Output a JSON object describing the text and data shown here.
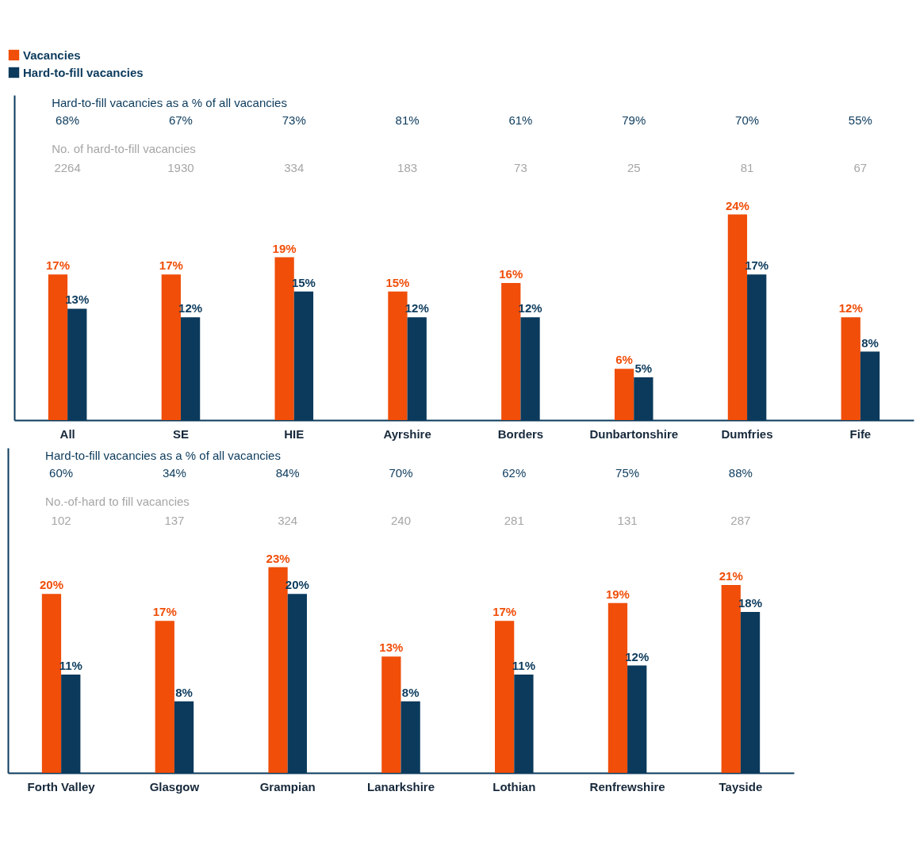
{
  "chart_data": [
    {
      "type": "bar",
      "categories": [
        "All",
        "SE",
        "HIE",
        "Ayrshire",
        "Borders",
        "Dunbartonshire",
        "Dumfries",
        "Fife"
      ],
      "legend": "top left",
      "series": [
        {
          "name": "Vacancies",
          "color": "#f04e09",
          "values": [
            17,
            17,
            19,
            15,
            16,
            6,
            24,
            12
          ],
          "value_labels": [
            "17%",
            "17%",
            "19%",
            "15%",
            "16%",
            "6%",
            "24%",
            "12%"
          ]
        },
        {
          "name": "Hard-to-fill vacancies",
          "color": "#0b3a5c",
          "values": [
            13,
            12,
            15,
            12,
            12,
            5,
            17,
            8
          ],
          "value_labels": [
            "13%",
            "12%",
            "15%",
            "12%",
            "12%",
            "5%",
            "17%",
            "8%"
          ]
        }
      ],
      "annotations": [
        "Hard-to-fill vacancies as a % of all vacancies",
        "68%",
        "67%",
        "73%",
        "81%",
        "61%",
        "79%",
        "70%",
        "55%",
        "No. of hard-to-fill vacancies",
        "2264",
        "1930",
        "334",
        "183",
        "73",
        "25",
        "81",
        "67"
      ]
    },
    {
      "type": "bar",
      "categories": [
        "Forth Valley",
        "Glasgow",
        "Grampian",
        "Lanarkshire",
        "Lothian",
        "Renfrewshire",
        "Tayside"
      ],
      "series": [
        {
          "color": "#f04e09",
          "values": [
            20,
            17,
            23,
            13,
            17,
            19,
            21
          ],
          "value_labels": [
            "20%",
            "17%",
            "23%",
            "13%",
            "17%",
            "19%",
            "21%"
          ]
        },
        {
          "color": "#0b3a5c",
          "values": [
            11,
            8,
            20,
            8,
            11,
            12,
            18
          ],
          "value_labels": [
            "11%",
            "8%",
            "20%",
            "8%",
            "11%",
            "12%",
            "18%"
          ]
        }
      ],
      "annotations": [
        "Hard-to-fill vacancies as a % of all vacancies",
        "60%",
        "34%",
        "84%",
        "70%",
        "62%",
        "75%",
        "88%",
        "No.-of-hard to fill vacancies",
        "102",
        "137",
        "324",
        "240",
        "281",
        "131",
        "287"
      ]
    }
  ]
}
